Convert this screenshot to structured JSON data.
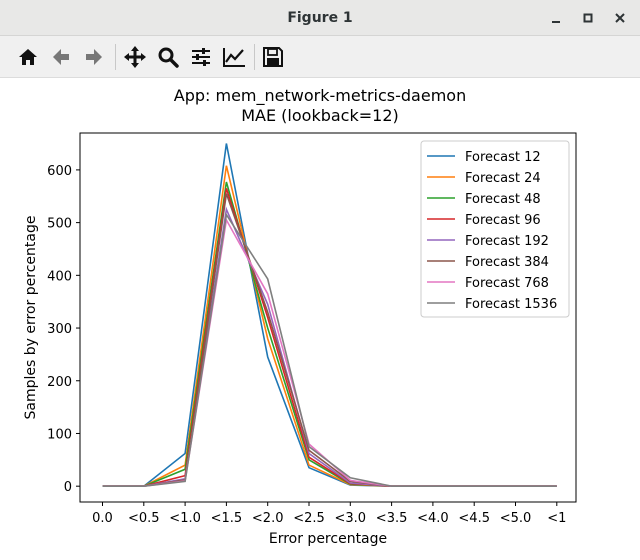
{
  "window": {
    "title": "Figure 1",
    "minimize_icon": "minimize-icon",
    "maximize_icon": "maximize-icon",
    "close_icon": "close-icon"
  },
  "toolbar": {
    "tools": [
      {
        "name": "home-button",
        "icon": "home-icon"
      },
      {
        "name": "back-button",
        "icon": "arrow-left-icon"
      },
      {
        "name": "forward-button",
        "icon": "arrow-right-icon"
      },
      {
        "name": "pan-button",
        "icon": "move-icon"
      },
      {
        "name": "zoom-button",
        "icon": "magnifier-icon"
      },
      {
        "name": "configure-subplots-button",
        "icon": "sliders-icon"
      },
      {
        "name": "edit-axis-button",
        "icon": "line-chart-icon"
      },
      {
        "name": "save-button",
        "icon": "floppy-disk-icon"
      }
    ]
  },
  "chart_data": {
    "type": "line",
    "title": "App: mem_network-metrics-daemon",
    "subtitle": "MAE (lookback=12)",
    "xlabel": "Error percentage",
    "ylabel": "Samples by error percentage",
    "categories": [
      "0.0",
      "<0.5",
      "<1.0",
      "<1.5",
      "<2.0",
      "<2.5",
      "<3.0",
      "<3.5",
      "<4.0",
      "<4.5",
      "<5.0",
      "<1"
    ],
    "ylim": [
      -30,
      670
    ],
    "yticks": [
      0,
      100,
      200,
      300,
      400,
      500,
      600
    ],
    "grid": false,
    "legend_position": "top-right",
    "series": [
      {
        "name": "Forecast 12",
        "color": "#1f77b4",
        "values": [
          0,
          0,
          62,
          650,
          245,
          35,
          2,
          0,
          0,
          0,
          0,
          0
        ]
      },
      {
        "name": "Forecast 24",
        "color": "#ff7f0e",
        "values": [
          0,
          0,
          40,
          608,
          280,
          40,
          3,
          0,
          0,
          0,
          0,
          0
        ]
      },
      {
        "name": "Forecast 48",
        "color": "#2ca02c",
        "values": [
          0,
          0,
          32,
          577,
          300,
          50,
          4,
          0,
          0,
          0,
          0,
          0
        ]
      },
      {
        "name": "Forecast 96",
        "color": "#d62728",
        "values": [
          0,
          0,
          20,
          565,
          320,
          55,
          5,
          0,
          0,
          0,
          0,
          0
        ]
      },
      {
        "name": "Forecast 192",
        "color": "#9467bd",
        "values": [
          0,
          0,
          14,
          525,
          345,
          62,
          6,
          0,
          0,
          0,
          0,
          0
        ]
      },
      {
        "name": "Forecast 384",
        "color": "#8c564b",
        "values": [
          0,
          0,
          12,
          555,
          330,
          68,
          9,
          0,
          0,
          0,
          0,
          0
        ]
      },
      {
        "name": "Forecast 768",
        "color": "#e377c2",
        "values": [
          0,
          0,
          10,
          505,
          365,
          80,
          11,
          0,
          0,
          0,
          0,
          0
        ]
      },
      {
        "name": "Forecast 1536",
        "color": "#7f7f7f",
        "values": [
          0,
          0,
          9,
          515,
          393,
          75,
          16,
          0,
          0,
          0,
          0,
          0
        ]
      }
    ]
  }
}
